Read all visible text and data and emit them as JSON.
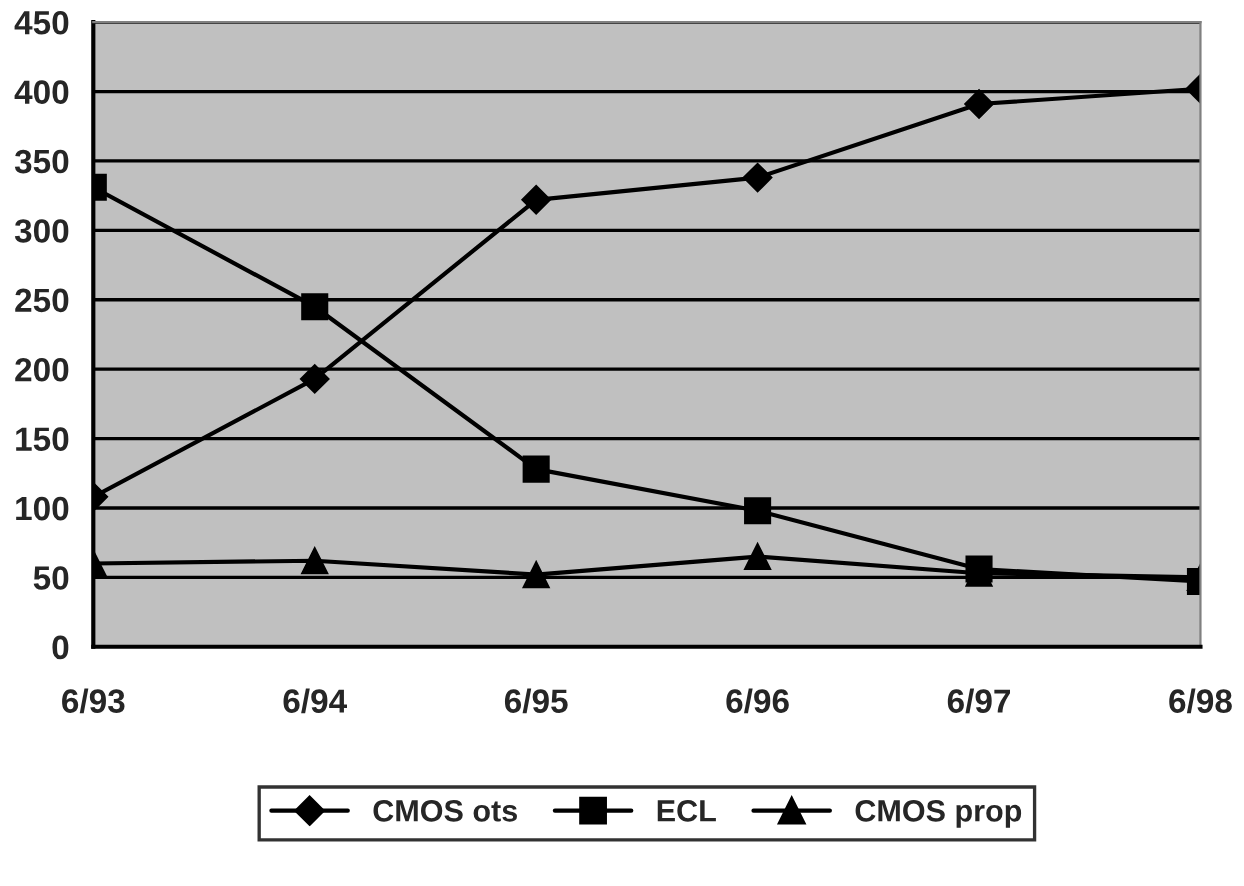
{
  "chart_data": {
    "type": "line",
    "categories": [
      "6/93",
      "6/94",
      "6/95",
      "6/96",
      "6/97",
      "6/98"
    ],
    "series": [
      {
        "name": "CMOS ots",
        "color": "#000000",
        "marker": "diamond",
        "values": [
          108,
          193,
          322,
          338,
          391,
          402
        ]
      },
      {
        "name": "ECL",
        "color": "#000000",
        "marker": "square",
        "values": [
          331,
          245,
          128,
          98,
          56,
          47
        ]
      },
      {
        "name": "CMOS prop",
        "color": "#000000",
        "marker": "triangle",
        "values": [
          60,
          62,
          52,
          65,
          53,
          50
        ]
      }
    ],
    "ylim": [
      0,
      450
    ],
    "yticks": [
      0,
      50,
      100,
      150,
      200,
      250,
      300,
      350,
      400,
      450
    ],
    "grid": "y",
    "legend": "bottom",
    "line_style": "solid"
  }
}
